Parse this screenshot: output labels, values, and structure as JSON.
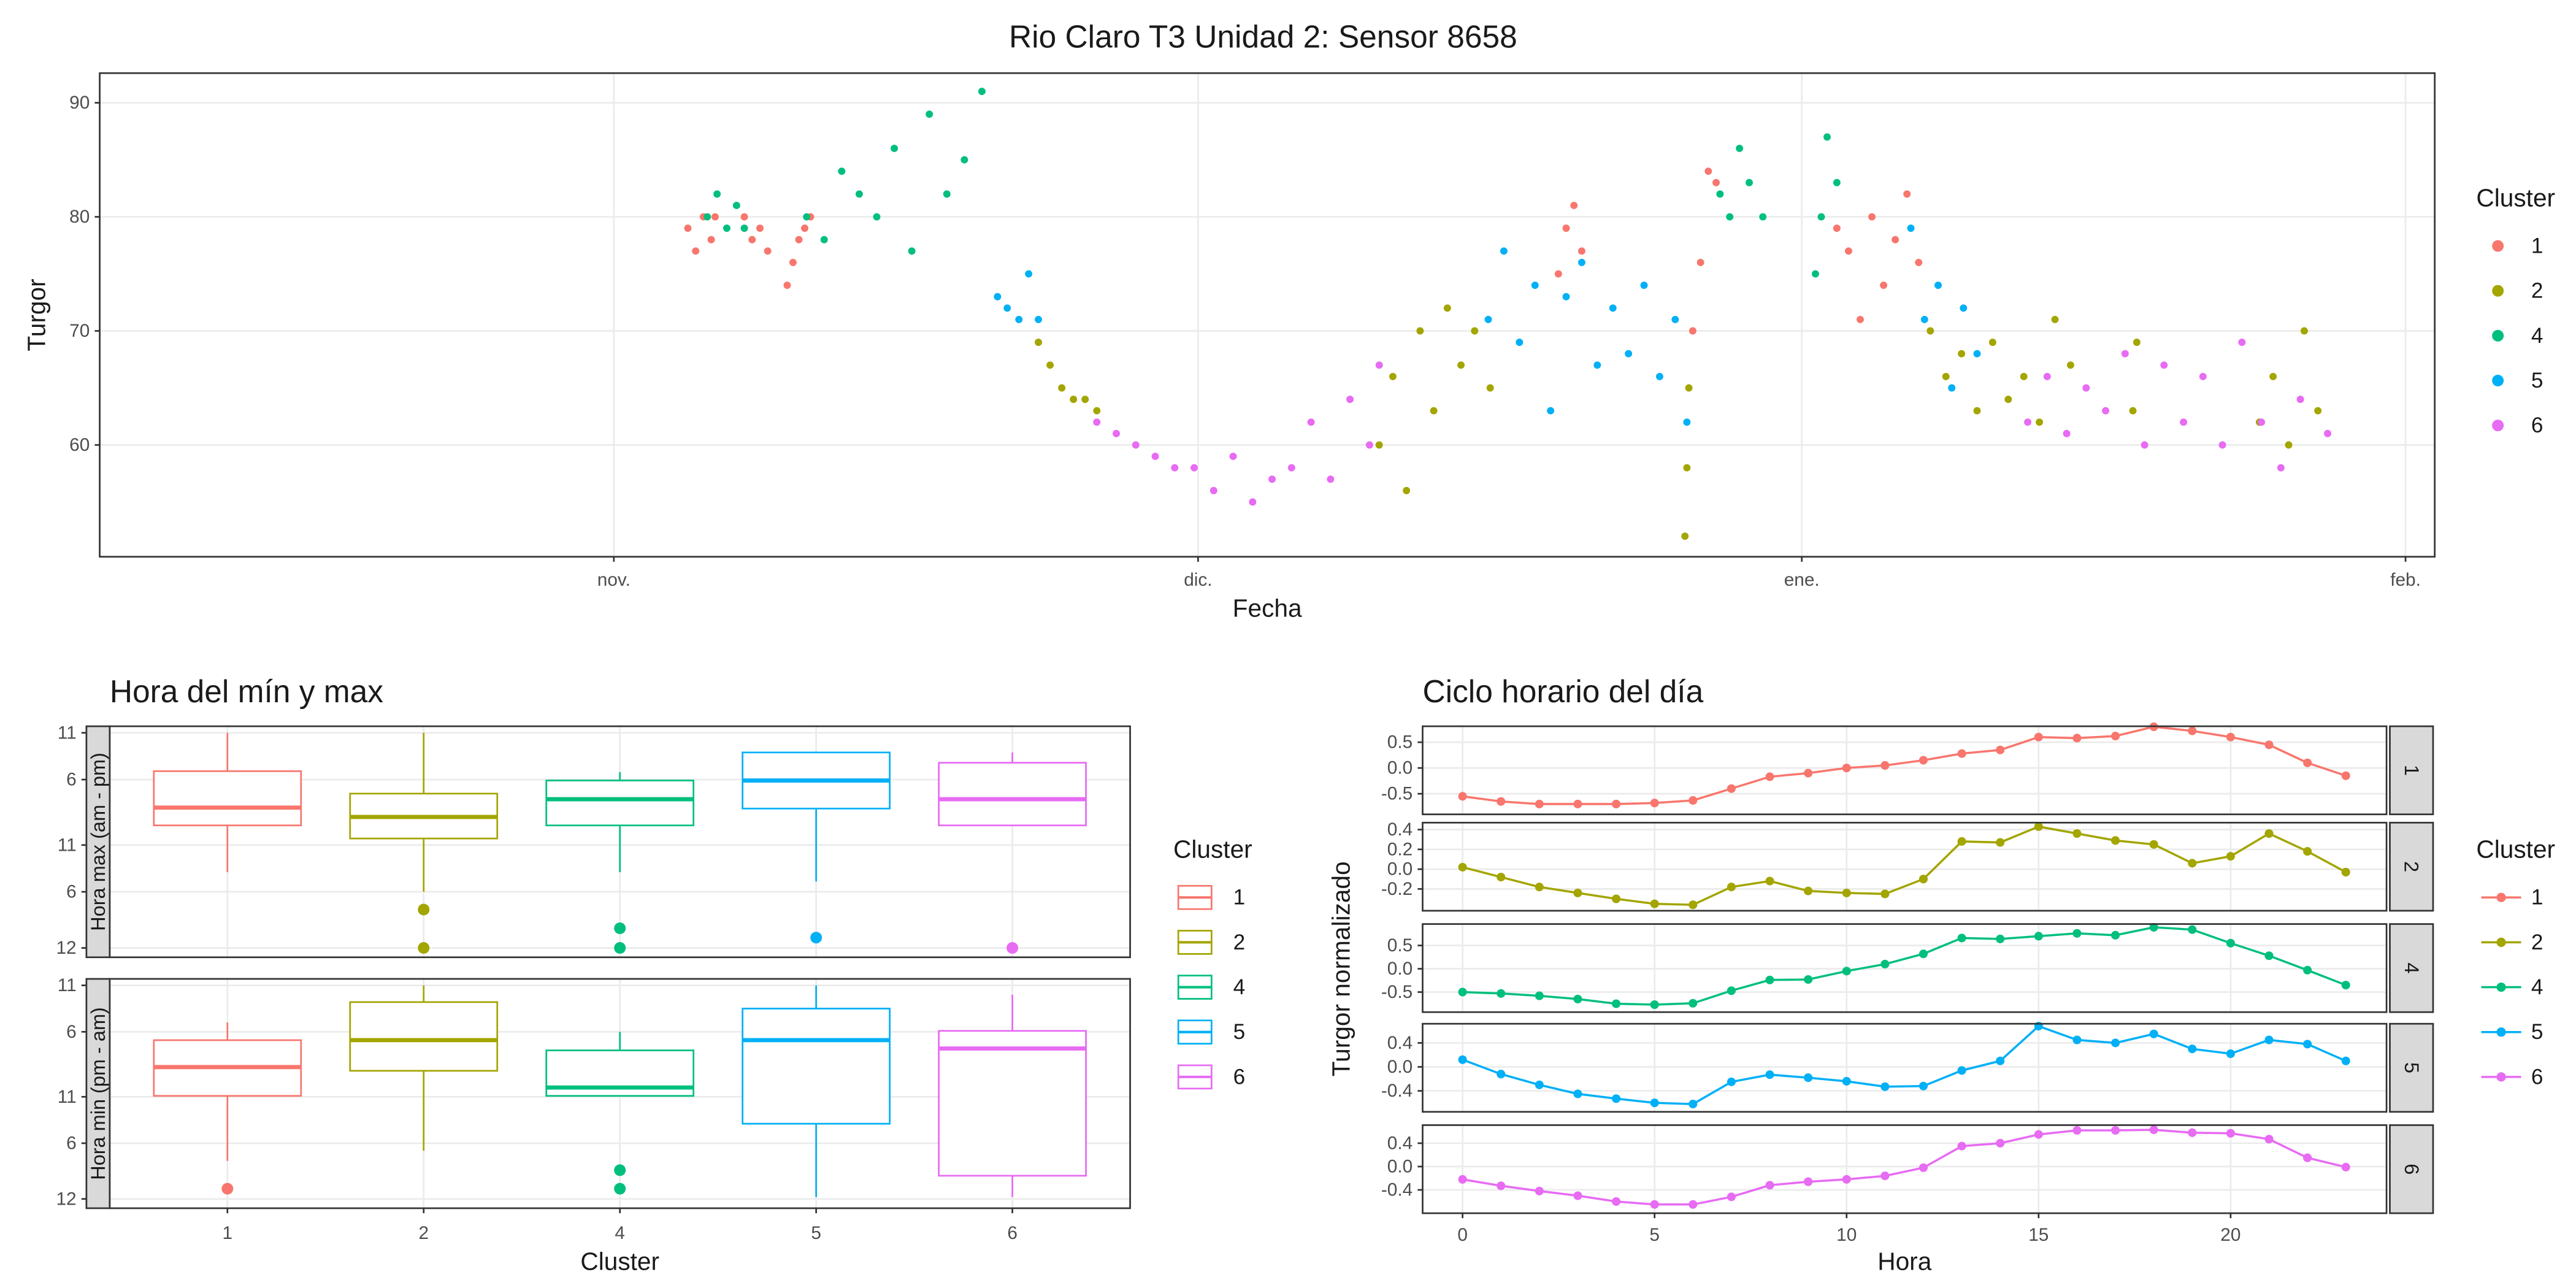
{
  "chart_data": [
    {
      "type": "scatter",
      "title": "Rio Claro T3 Unidad 2: Sensor 8658",
      "x_label": "Fecha",
      "y_label": "Turgor",
      "xlim": [
        -26.4,
        93.5
      ],
      "ylim": [
        50.2,
        92.6
      ],
      "xticks": [
        {
          "value": 0,
          "label": "nov."
        },
        {
          "value": 30,
          "label": "dic."
        },
        {
          "value": 61,
          "label": "ene."
        },
        {
          "value": 92,
          "label": "feb."
        }
      ],
      "yticks": [
        60,
        70,
        80,
        90
      ],
      "grid": true,
      "legend_title": "Cluster",
      "series": [
        {
          "name": "1",
          "color": "#F8766D",
          "x": [
            3.8,
            4.2,
            4.6,
            5.0,
            5.2,
            6.7,
            7.1,
            7.5,
            7.9,
            8.9,
            9.2,
            9.5,
            9.8,
            10.1,
            48.5,
            48.9,
            49.3,
            49.7,
            55.4,
            55.8,
            56.2,
            56.6,
            62.8,
            63.4,
            64.0,
            64.6,
            65.2,
            65.8,
            66.4,
            67.0
          ],
          "values": [
            79,
            77,
            80,
            78,
            80,
            80,
            78,
            79,
            77,
            74,
            76,
            78,
            79,
            80,
            75,
            79,
            81,
            77,
            70,
            76,
            84,
            83,
            79,
            77,
            71,
            80,
            74,
            78,
            82,
            76
          ]
        },
        {
          "name": "2",
          "color": "#A3A500",
          "x": [
            21.8,
            22.4,
            23.0,
            23.6,
            24.2,
            24.8,
            39.3,
            40.0,
            40.7,
            41.4,
            42.1,
            42.8,
            43.5,
            44.2,
            45.0,
            55.0,
            55.1,
            55.2,
            67.6,
            68.4,
            69.2,
            70.0,
            70.8,
            71.6,
            72.4,
            73.2,
            74.0,
            74.8,
            78.0,
            78.2,
            84.5,
            85.2,
            86.0,
            86.8,
            87.5
          ],
          "values": [
            69,
            67,
            65,
            64,
            64,
            63,
            60,
            66,
            56,
            70,
            63,
            72,
            67,
            70,
            65,
            52,
            58,
            65,
            70,
            66,
            68,
            63,
            69,
            64,
            66,
            62,
            71,
            67,
            63,
            69,
            62,
            66,
            60,
            70,
            63
          ]
        },
        {
          "name": "4",
          "color": "#00BF7D",
          "x": [
            4.8,
            5.3,
            5.8,
            6.3,
            6.7,
            9.9,
            10.8,
            11.7,
            12.6,
            13.5,
            14.4,
            15.3,
            16.2,
            17.1,
            18.0,
            18.9,
            56.8,
            57.3,
            57.8,
            58.3,
            59.0,
            61.7,
            62.0,
            62.3,
            62.8
          ],
          "values": [
            80,
            82,
            79,
            81,
            79,
            80,
            78,
            84,
            82,
            80,
            86,
            77,
            89,
            82,
            85,
            91,
            82,
            80,
            86,
            83,
            80,
            75,
            80,
            87,
            83
          ]
        },
        {
          "name": "5",
          "color": "#00B0F6",
          "x": [
            19.7,
            20.2,
            20.8,
            21.3,
            21.8,
            44.9,
            45.7,
            46.5,
            47.3,
            48.1,
            48.9,
            49.7,
            50.5,
            51.3,
            52.1,
            52.9,
            53.7,
            54.5,
            55.1,
            66.6,
            67.3,
            68.0,
            68.7,
            69.3,
            70.0
          ],
          "values": [
            73,
            72,
            71,
            75,
            71,
            71,
            77,
            69,
            74,
            63,
            73,
            76,
            67,
            72,
            68,
            74,
            66,
            71,
            62,
            79,
            71,
            74,
            65,
            72,
            68
          ]
        },
        {
          "name": "6",
          "color": "#E76BF3",
          "x": [
            24.8,
            25.8,
            26.8,
            27.8,
            28.8,
            29.8,
            30.8,
            31.8,
            32.8,
            33.8,
            34.8,
            35.8,
            36.8,
            37.8,
            38.8,
            39.3,
            72.6,
            73.6,
            74.6,
            75.6,
            76.6,
            77.6,
            78.6,
            79.6,
            80.6,
            81.6,
            82.6,
            83.6,
            84.6,
            85.6,
            86.6,
            88.0
          ],
          "values": [
            62,
            61,
            60,
            59,
            58,
            58,
            56,
            59,
            55,
            57,
            58,
            62,
            57,
            64,
            60,
            67,
            62,
            66,
            61,
            65,
            63,
            68,
            60,
            67,
            62,
            66,
            60,
            69,
            62,
            58,
            64,
            61
          ]
        }
      ]
    },
    {
      "type": "boxplot",
      "title": "Hora del mín y max",
      "x_label": "Cluster",
      "categories": [
        "1",
        "2",
        "4",
        "5",
        "6"
      ],
      "ylim": [
        -1,
        23.7
      ],
      "yticks": [
        {
          "value": 0,
          "label": "12"
        },
        6,
        11,
        {
          "value": 18,
          "label": "6"
        },
        {
          "value": 23,
          "label": "11"
        }
      ],
      "grid": true,
      "legend_title": "Cluster",
      "series": [
        {
          "name": "1",
          "color": "#F8766D"
        },
        {
          "name": "2",
          "color": "#A3A500"
        },
        {
          "name": "4",
          "color": "#00BF7D"
        },
        {
          "name": "5",
          "color": "#00B0F6"
        },
        {
          "name": "6",
          "color": "#E76BF3"
        }
      ],
      "facets": [
        {
          "label": "Hora max (am - pm)",
          "boxes": [
            {
              "whislo": 8.1,
              "q1": 13.1,
              "med": 15,
              "q3": 18.9,
              "whishi": 23,
              "outliers": []
            },
            {
              "whislo": 6,
              "q1": 11.7,
              "med": 14,
              "q3": 16.5,
              "whishi": 23,
              "outliers": [
                4.1,
                0
              ]
            },
            {
              "whislo": 8.1,
              "q1": 13.1,
              "med": 15.9,
              "q3": 17.9,
              "whishi": 18.8,
              "outliers": [
                2.1,
                0
              ]
            },
            {
              "whislo": 7.1,
              "q1": 14.9,
              "med": 17.9,
              "q3": 20.9,
              "whishi": 20.9,
              "outliers": [
                1.1
              ]
            },
            {
              "whislo": 13.1,
              "q1": 13.1,
              "med": 15.9,
              "q3": 19.8,
              "whishi": 20.9,
              "outliers": [
                0
              ]
            }
          ]
        },
        {
          "label": "Hora min (pm - am)",
          "boxes": [
            {
              "whislo": 4.1,
              "q1": 11.1,
              "med": 14.2,
              "q3": 17.1,
              "whishi": 19,
              "outliers": [
                1.1
              ]
            },
            {
              "whislo": 5.2,
              "q1": 13.8,
              "med": 17.1,
              "q3": 21.2,
              "whishi": 23,
              "outliers": []
            },
            {
              "whislo": 11.1,
              "q1": 11.1,
              "med": 12,
              "q3": 16,
              "whishi": 18,
              "outliers": [
                3.1,
                1.1
              ]
            },
            {
              "whislo": 0.2,
              "q1": 8.1,
              "med": 17.1,
              "q3": 20.5,
              "whishi": 23,
              "outliers": []
            },
            {
              "whislo": 0.2,
              "q1": 2.5,
              "med": 16.2,
              "q3": 18.1,
              "whishi": 22,
              "outliers": []
            }
          ]
        }
      ]
    },
    {
      "type": "line",
      "title": "Ciclo horario del día",
      "x_label": "Hora",
      "y_label": "Turgor normalizado",
      "x": [
        0,
        1,
        2,
        3,
        4,
        5,
        6,
        7,
        8,
        9,
        10,
        11,
        12,
        13,
        14,
        15,
        16,
        17,
        18,
        19,
        20,
        21,
        22,
        23
      ],
      "xlim": [
        -1.04,
        24.06
      ],
      "xticks": [
        0,
        5,
        10,
        15,
        20
      ],
      "grid": true,
      "legend_title": "Cluster",
      "series": [
        {
          "name": "1",
          "color": "#F8766D",
          "ylim": [
            -0.9,
            0.81
          ],
          "yticks": [
            -0.5,
            {
              "value": 0,
              "label": "0.0"
            },
            0.5
          ],
          "values": [
            -0.55,
            -0.65,
            -0.7,
            -0.7,
            -0.7,
            -0.68,
            -0.63,
            -0.4,
            -0.17,
            -0.1,
            0.0,
            0.05,
            0.15,
            0.28,
            0.35,
            0.6,
            0.58,
            0.62,
            0.8,
            0.72,
            0.6,
            0.45,
            0.1,
            -0.15
          ]
        },
        {
          "name": "2",
          "color": "#A3A500",
          "ylim": [
            -0.42,
            0.47
          ],
          "yticks": [
            -0.2,
            {
              "value": 0,
              "label": "0.0"
            },
            0.2,
            0.4
          ],
          "values": [
            0.02,
            -0.08,
            -0.18,
            -0.24,
            -0.3,
            -0.35,
            -0.36,
            -0.18,
            -0.12,
            -0.22,
            -0.24,
            -0.25,
            -0.1,
            0.28,
            0.27,
            0.43,
            0.36,
            0.29,
            0.25,
            0.06,
            0.13,
            0.36,
            0.18,
            -0.03
          ]
        },
        {
          "name": "4",
          "color": "#00BF7D",
          "ylim": [
            -0.93,
            0.96
          ],
          "yticks": [
            -0.5,
            {
              "value": 0,
              "label": "0.0"
            },
            0.5
          ],
          "values": [
            -0.5,
            -0.53,
            -0.58,
            -0.65,
            -0.75,
            -0.77,
            -0.74,
            -0.47,
            -0.24,
            -0.23,
            -0.05,
            0.1,
            0.32,
            0.66,
            0.64,
            0.7,
            0.76,
            0.72,
            0.89,
            0.84,
            0.55,
            0.28,
            -0.03,
            -0.35
          ]
        },
        {
          "name": "5",
          "color": "#00B0F6",
          "ylim": [
            -0.75,
            0.72
          ],
          "yticks": [
            -0.4,
            {
              "value": 0,
              "label": "0.0"
            },
            0.4
          ],
          "values": [
            0.12,
            -0.12,
            -0.3,
            -0.45,
            -0.53,
            -0.6,
            -0.62,
            -0.25,
            -0.13,
            -0.18,
            -0.24,
            -0.33,
            -0.32,
            -0.06,
            0.1,
            0.68,
            0.45,
            0.4,
            0.55,
            0.3,
            0.22,
            0.45,
            0.38,
            0.1
          ]
        },
        {
          "name": "6",
          "color": "#E76BF3",
          "ylim": [
            -0.8,
            0.71
          ],
          "yticks": [
            -0.4,
            {
              "value": 0,
              "label": "0.0"
            },
            0.4
          ],
          "values": [
            -0.22,
            -0.33,
            -0.42,
            -0.5,
            -0.6,
            -0.65,
            -0.65,
            -0.52,
            -0.32,
            -0.26,
            -0.22,
            -0.16,
            -0.02,
            0.35,
            0.4,
            0.55,
            0.62,
            0.62,
            0.63,
            0.58,
            0.57,
            0.47,
            0.15,
            -0.01
          ]
        }
      ]
    }
  ]
}
